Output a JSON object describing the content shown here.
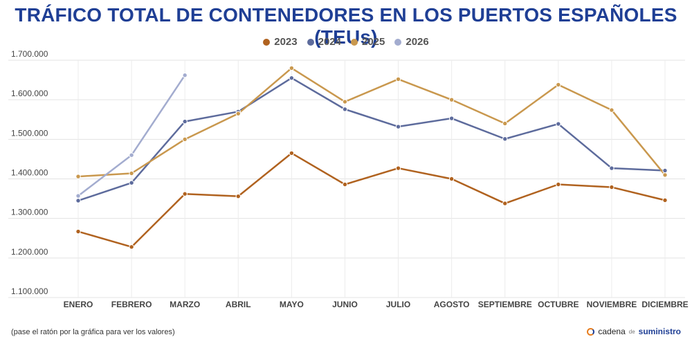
{
  "header": {
    "title": "TRÁFICO TOTAL DE CONTENEDORES EN LOS PUERTOS ESPAÑOLES (TEUs)"
  },
  "footer": {
    "note": "(pase el ratón por la gráfica para ver los valores)",
    "brand_a": "cadena",
    "brand_de": "de",
    "brand_b": "suministro"
  },
  "chart_data": {
    "type": "line",
    "title": "TRÁFICO TOTAL DE CONTENEDORES EN LOS PUERTOS ESPAÑOLES (TEUs)",
    "categories": [
      "ENERO",
      "FEBRERO",
      "MARZO",
      "ABRIL",
      "MAYO",
      "JUNIO",
      "JULIO",
      "AGOSTO",
      "SEPTIEMBRE",
      "OCTUBRE",
      "NOVIEMBRE",
      "DICIEMBRE"
    ],
    "y_ticks": [
      "1.100.000",
      "1.200.000",
      "1.300.000",
      "1.400.000",
      "1.500.000",
      "1.600.000",
      "1.700.000"
    ],
    "ylim": [
      1100000,
      1700000
    ],
    "grid": true,
    "legend_position": "top-center",
    "series": [
      {
        "name": "2023",
        "color": "#b0621f",
        "values": [
          1267000,
          1228000,
          1362000,
          1356000,
          1465000,
          1386000,
          1427000,
          1400000,
          1338000,
          1386000,
          1379000,
          1346000
        ]
      },
      {
        "name": "2024",
        "color": "#5d6b9c",
        "values": [
          1345000,
          1390000,
          1545000,
          1570000,
          1655000,
          1576000,
          1532000,
          1553000,
          1501000,
          1539000,
          1427000,
          1421000
        ]
      },
      {
        "name": "2025",
        "color": "#c9984e",
        "values": [
          1406000,
          1414000,
          1500000,
          1565000,
          1680000,
          1595000,
          1652000,
          1600000,
          1540000,
          1638000,
          1574000,
          1410000
        ]
      },
      {
        "name": "2026",
        "color": "#a3accf",
        "values": [
          1357000,
          1460000,
          1662000,
          null,
          null,
          null,
          null,
          null,
          null,
          null,
          null,
          null
        ]
      }
    ]
  }
}
